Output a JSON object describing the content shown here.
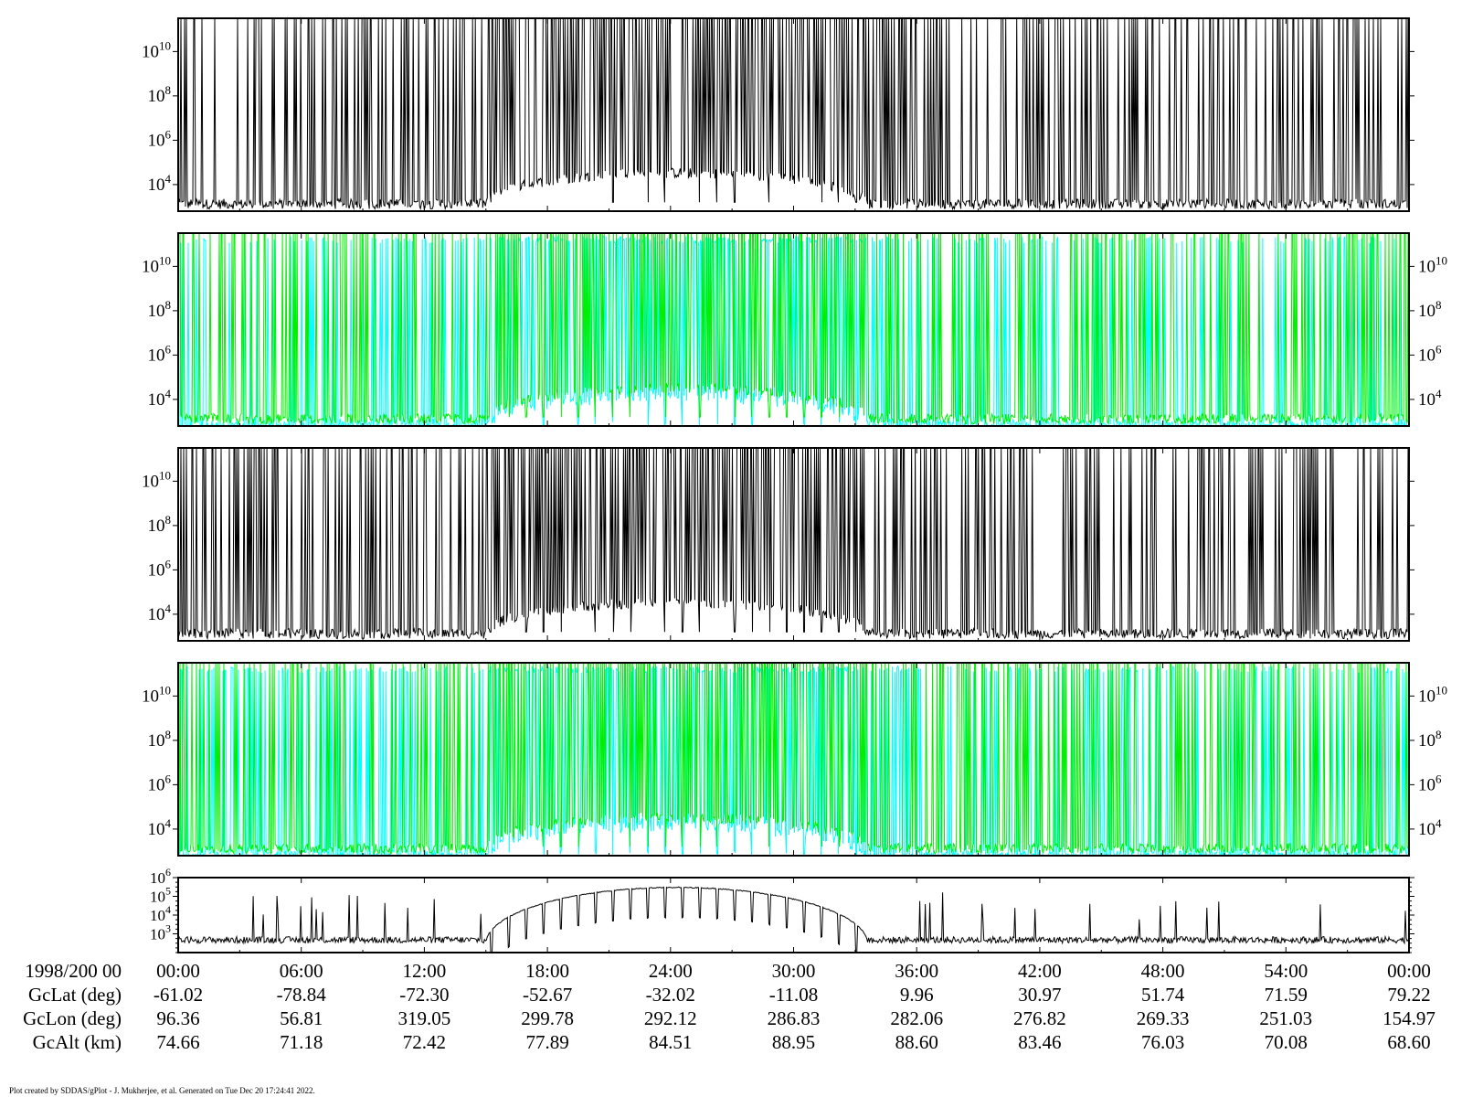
{
  "chart_data": {
    "type": "line",
    "x_axis": {
      "date_label": "1998/200 00",
      "tick_labels": [
        "00:00",
        "06:00",
        "12:00",
        "18:00",
        "24:00",
        "30:00",
        "36:00",
        "42:00",
        "48:00",
        "54:00",
        "00:00"
      ],
      "minor_ticks_per_major": 2
    },
    "ephemeris": [
      {
        "label": "GcLat (deg)",
        "values": [
          "-61.02",
          "-78.84",
          "-72.30",
          "-52.67",
          "-32.02",
          "-11.08",
          "9.96",
          "30.97",
          "51.74",
          "71.59",
          "79.22"
        ]
      },
      {
        "label": "GcLon (deg)",
        "values": [
          "96.36",
          "56.81",
          "319.05",
          "299.78",
          "292.12",
          "286.83",
          "282.06",
          "276.82",
          "269.33",
          "251.03",
          "154.97"
        ]
      },
      {
        "label": "GcAlt (km)",
        "values": [
          "74.66",
          "71.18",
          "72.42",
          "77.89",
          "84.51",
          "88.95",
          "88.60",
          "83.46",
          "76.03",
          "70.08",
          "68.60"
        ]
      }
    ],
    "panels": [
      {
        "id": "panel-1",
        "scale": "log",
        "ylim_log10": [
          2.8,
          11.5
        ],
        "y_ticks": [
          {
            "base": "10",
            "exp": "10"
          },
          {
            "base": "10",
            "exp": "8"
          },
          {
            "base": "10",
            "exp": "6"
          },
          {
            "base": "10",
            "exp": "4"
          }
        ],
        "y_tick_side": "left",
        "colors": [
          "#000000"
        ],
        "baseline_log10": 2.9,
        "spike_top_log10": 11.5,
        "envelope_peak_log10": 4.3
      },
      {
        "id": "panel-2",
        "scale": "log",
        "ylim_log10": [
          2.8,
          11.5
        ],
        "y_ticks": [
          {
            "base": "10",
            "exp": "10"
          },
          {
            "base": "10",
            "exp": "8"
          },
          {
            "base": "10",
            "exp": "6"
          },
          {
            "base": "10",
            "exp": "4"
          }
        ],
        "y_tick_side": "both",
        "colors": [
          "#00ee00",
          "#00ffff"
        ],
        "baseline_log10": 2.9,
        "spike_top_log10": 11.5,
        "envelope_peak_log10": 4.3
      },
      {
        "id": "panel-3",
        "scale": "log",
        "ylim_log10": [
          2.8,
          11.5
        ],
        "y_ticks": [
          {
            "base": "10",
            "exp": "10"
          },
          {
            "base": "10",
            "exp": "8"
          },
          {
            "base": "10",
            "exp": "6"
          },
          {
            "base": "10",
            "exp": "4"
          }
        ],
        "y_tick_side": "left",
        "colors": [
          "#000000"
        ],
        "baseline_log10": 2.9,
        "spike_top_log10": 11.5,
        "envelope_peak_log10": 4.3
      },
      {
        "id": "panel-4",
        "scale": "log",
        "ylim_log10": [
          2.8,
          11.5
        ],
        "y_ticks": [
          {
            "base": "10",
            "exp": "10"
          },
          {
            "base": "10",
            "exp": "8"
          },
          {
            "base": "10",
            "exp": "6"
          },
          {
            "base": "10",
            "exp": "4"
          }
        ],
        "y_tick_side": "both",
        "colors": [
          "#00ee00",
          "#00ffff"
        ],
        "baseline_log10": 2.9,
        "spike_top_log10": 11.5,
        "envelope_peak_log10": 4.3
      },
      {
        "id": "panel-5",
        "scale": "log",
        "ylim_log10": [
          2.0,
          6.0
        ],
        "y_ticks": [
          {
            "base": "10",
            "exp": "6"
          },
          {
            "base": "10",
            "exp": "5"
          },
          {
            "base": "10",
            "exp": "4"
          },
          {
            "base": "10",
            "exp": "3"
          }
        ],
        "y_tick_side": "left",
        "colors": [
          "#000000"
        ],
        "baseline_log10": 2.5,
        "spike_top_log10": 4.6,
        "envelope_peak_log10": 5.5
      }
    ],
    "grid": false,
    "legend": "none"
  },
  "footer": "Plot created by SDDAS/gPlot - J. Mukherjee, et al.  Generated on Tue Dec 20 17:24:41 2022."
}
